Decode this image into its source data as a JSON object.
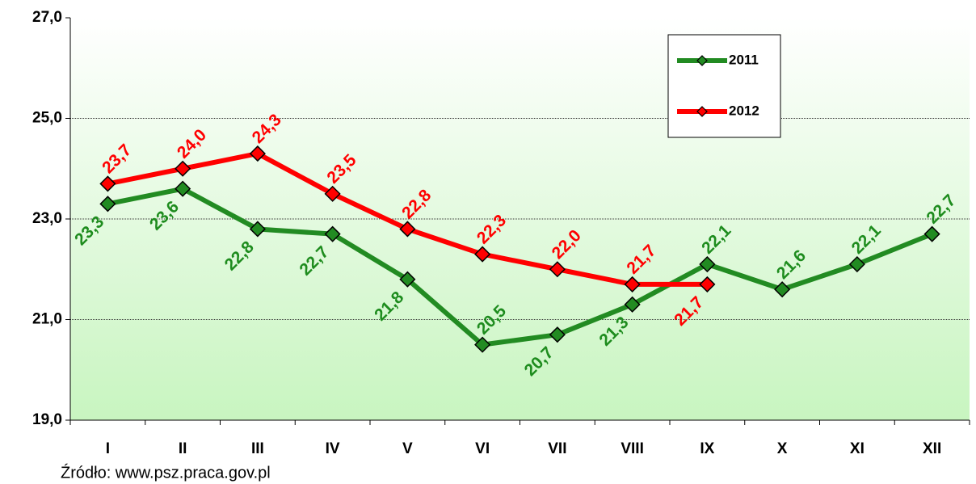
{
  "chart_data": {
    "type": "line",
    "categories": [
      "I",
      "II",
      "III",
      "IV",
      "V",
      "VI",
      "VII",
      "VIII",
      "IX",
      "X",
      "XI",
      "XII"
    ],
    "series": [
      {
        "name": "2011",
        "color": "#228b22",
        "values": [
          23.3,
          23.6,
          22.8,
          22.7,
          21.8,
          20.5,
          20.7,
          21.3,
          22.1,
          21.6,
          22.1,
          22.7
        ],
        "value_labels": [
          "23,3",
          "23,6",
          "22,8",
          "22,7",
          "21,8",
          "20,5",
          "20,7",
          "21,3",
          "22,1",
          "21,6",
          "22,1",
          "22,7"
        ]
      },
      {
        "name": "2012",
        "color": "#ff0000",
        "values": [
          23.7,
          24.0,
          24.3,
          23.5,
          22.8,
          22.3,
          22.0,
          21.7,
          21.7,
          null,
          null,
          null
        ],
        "value_labels": [
          "23,7",
          "24,0",
          "24,3",
          "23,5",
          "22,8",
          "22,3",
          "22,0",
          "21,7",
          "21,7",
          null,
          null,
          null
        ]
      }
    ],
    "ylim": [
      19,
      27
    ],
    "yticks": [
      {
        "value": 19,
        "label": "19,0"
      },
      {
        "value": 21,
        "label": "21,0"
      },
      {
        "value": 23,
        "label": "23,0"
      },
      {
        "value": 25,
        "label": "25,0"
      },
      {
        "value": 27,
        "label": "27,0"
      }
    ],
    "grid": true,
    "legend": "top-right",
    "source": "Źródło: www.psz.praca.gov.pl"
  }
}
